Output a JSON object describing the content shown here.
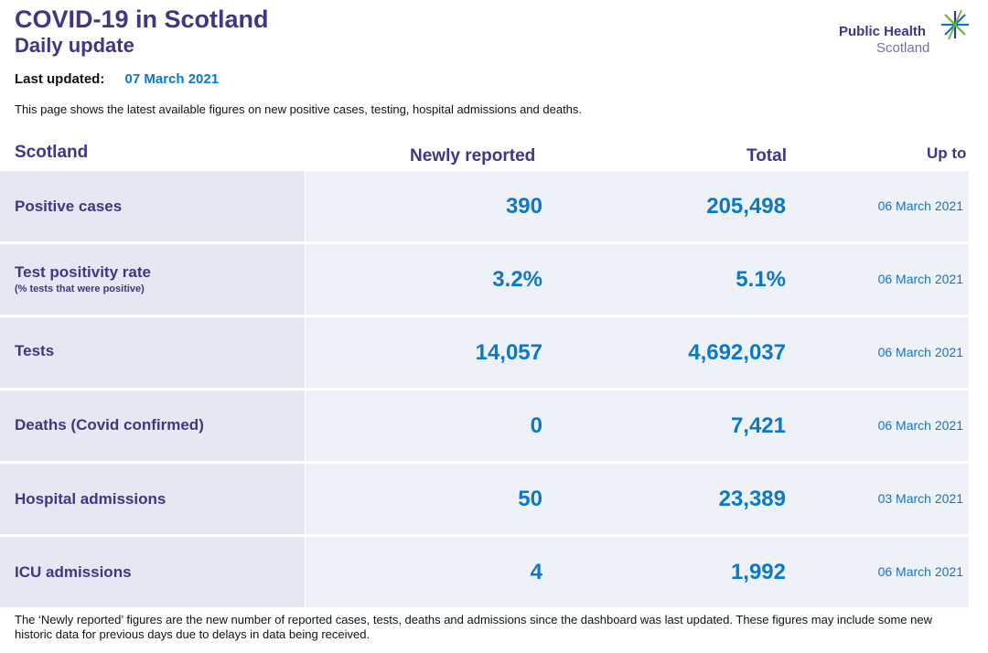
{
  "header": {
    "title": "COVID-19 in Scotland",
    "subtitle": "Daily update",
    "last_updated_label": "Last updated:",
    "last_updated_value": "07 March 2021",
    "intro": "This page shows the latest available figures on new positive cases, testing, hospital admissions and deaths."
  },
  "logo": {
    "line1": "Public Health",
    "line2": "Scotland",
    "icon": "star-burst-icon",
    "colors": {
      "purple": "#3f3685",
      "light_purple": "#7b6bb3",
      "green": "#6cb33f",
      "blue": "#0d78c8"
    }
  },
  "table": {
    "headers": {
      "region": "Scotland",
      "newly_reported": "Newly reported",
      "total": "Total",
      "up_to": "Up to"
    },
    "rows": [
      {
        "name": "Positive cases",
        "note": "",
        "newly": "390",
        "total": "205,498",
        "up_to": "06 March 2021"
      },
      {
        "name": "Test positivity rate",
        "note": "(% tests that were positive)",
        "newly": "3.2%",
        "total": "5.1%",
        "up_to": "06 March 2021"
      },
      {
        "name": "Tests",
        "note": "",
        "newly": "14,057",
        "total": "4,692,037",
        "up_to": "06 March 2021"
      },
      {
        "name": "Deaths (Covid confirmed)",
        "note": "",
        "newly": "0",
        "total": "7,421",
        "up_to": "06 March 2021"
      },
      {
        "name": "Hospital admissions",
        "note": "",
        "newly": "50",
        "total": "23,389",
        "up_to": "03 March 2021"
      },
      {
        "name": "ICU admissions",
        "note": "",
        "newly": "4",
        "total": "1,992",
        "up_to": "06 March 2021"
      }
    ]
  },
  "footer": {
    "text": "The ‘Newly reported’ figures are the new number of reported cases, tests, deaths and admissions since the dashboard was last updated. These figures may include some new historic data for previous days due to delays in data being received."
  },
  "colors": {
    "heading": "#3f3685",
    "value": "#0d78c8",
    "row_name_bg": "#e5e8f2",
    "row_data_bg": "#eef1f8"
  }
}
